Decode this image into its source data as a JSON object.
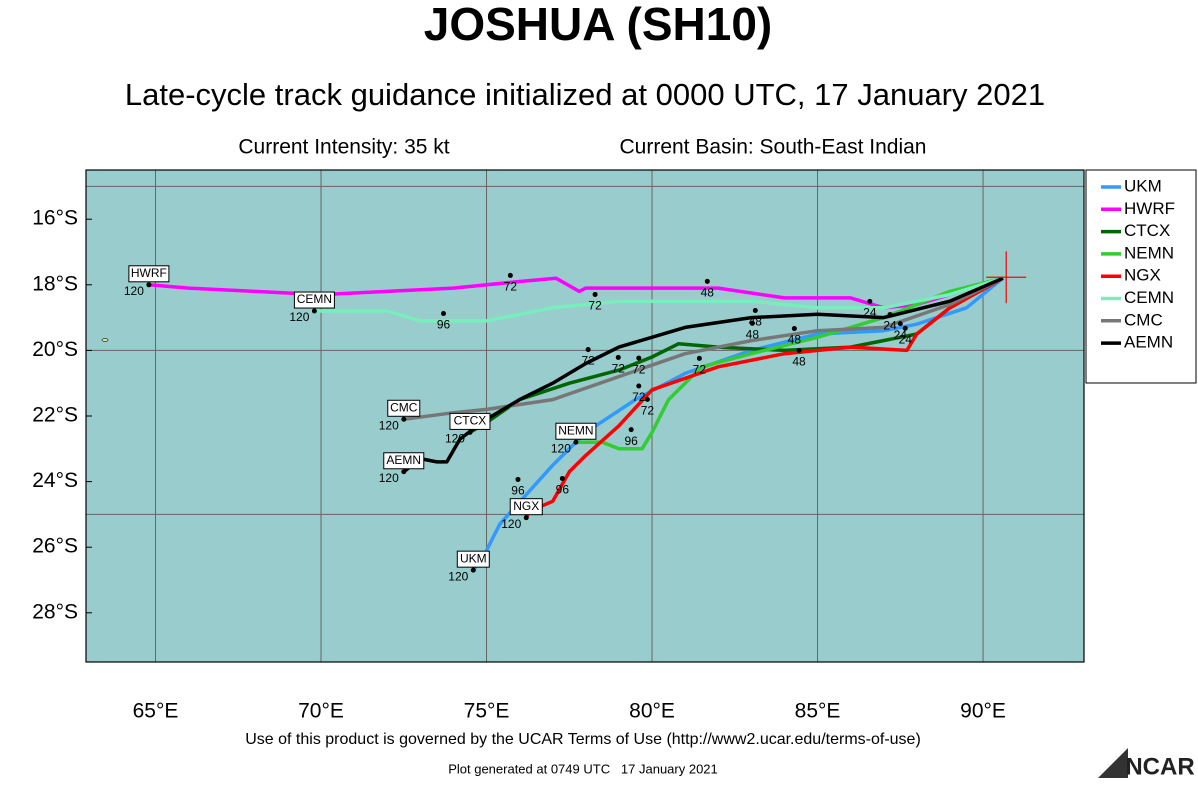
{
  "title": "JOSHUA (SH10)",
  "subtitle": "Late-cycle track guidance initialized at 0000 UTC, 17 January 2021",
  "intensity": "Current Intensity: 35 kt",
  "basin": "Current Basin: South-East Indian",
  "map": {
    "xlim": [
      62.9,
      93.05
    ],
    "ylim": [
      -29.5,
      -14.5
    ],
    "xticks": [
      {
        "value": 65,
        "label": "65°E"
      },
      {
        "value": 70,
        "label": "70°E"
      },
      {
        "value": 75,
        "label": "75°E"
      },
      {
        "value": 80,
        "label": "80°E"
      },
      {
        "value": 85,
        "label": "85°E"
      },
      {
        "value": 90,
        "label": "90°E"
      }
    ],
    "yticks": [
      {
        "value": -16,
        "label": "16°S"
      },
      {
        "value": -18,
        "label": "18°S"
      },
      {
        "value": -20,
        "label": "20°S"
      },
      {
        "value": -22,
        "label": "22°S"
      },
      {
        "value": -24,
        "label": "24°S"
      },
      {
        "value": -26,
        "label": "26°S"
      },
      {
        "value": -28,
        "label": "28°S"
      }
    ],
    "grid_lats": [
      -15,
      -20,
      -25
    ],
    "background": "#99cccc",
    "current_position": {
      "lon": 90.7,
      "lat": -17.77
    },
    "end_hour": "120",
    "tracks": [
      {
        "name": "UKM",
        "color": "#3399ff",
        "lon": [
          90.6,
          89.5,
          88,
          87,
          85,
          83,
          81,
          79.5,
          78,
          77,
          76.2,
          75.4,
          74.9,
          74.6
        ],
        "lat": [
          -17.8,
          -18.7,
          -19.2,
          -19.4,
          -19.5,
          -20,
          -20.7,
          -21.5,
          -22.5,
          -23.5,
          -24.4,
          -25.3,
          -26.3,
          -26.7
        ],
        "hour_labels": [
          {
            "text": "96",
            "lon": 75.95,
            "lat": -24.3
          },
          {
            "text": "72",
            "lon": 79.6,
            "lat": -21.45
          },
          {
            "text": "48",
            "lon": 84.3,
            "lat": -19.7
          }
        ]
      },
      {
        "name": "HWRF",
        "color": "#ff00ff",
        "lon": [
          90.6,
          89,
          88,
          87,
          86,
          84,
          82,
          78,
          77.8,
          77.1,
          76,
          74,
          72,
          70,
          68,
          66,
          64.8
        ],
        "lat": [
          -17.8,
          -18.3,
          -18.6,
          -18.7,
          -18.4,
          -18.4,
          -18.1,
          -18.1,
          -18.2,
          -17.8,
          -17.9,
          -18.1,
          -18.2,
          -18.3,
          -18.2,
          -18.1,
          -18.0
        ],
        "hour_labels": [
          {
            "text": "72",
            "lon": 75.72,
            "lat": -18.08
          },
          {
            "text": "48",
            "lon": 81.67,
            "lat": -18.26
          }
        ]
      },
      {
        "name": "CTCX",
        "color": "#006600",
        "lon": [
          90.6,
          89,
          88,
          86,
          84,
          82,
          80.8,
          80,
          79,
          77.5,
          76,
          75,
          74.5
        ],
        "lat": [
          -17.8,
          -18.7,
          -19.5,
          -19.9,
          -20,
          -19.9,
          -19.8,
          -20.2,
          -20.6,
          -21,
          -21.5,
          -22.2,
          -22.5
        ],
        "hour_labels": [
          {
            "text": "72",
            "lon": 79.6,
            "lat": -20.6
          },
          {
            "text": "24",
            "lon": 87.5,
            "lat": -19.55
          }
        ]
      },
      {
        "name": "NEMN",
        "color": "#33cc33",
        "lon": [
          90.6,
          89,
          87,
          85,
          83,
          81.5,
          80.5,
          80,
          79.7,
          79,
          78.5,
          77.7
        ],
        "lat": [
          -17.8,
          -18.2,
          -19,
          -19.6,
          -20.1,
          -20.5,
          -21.5,
          -22.5,
          -23,
          -23,
          -22.8,
          -22.8
        ],
        "hour_labels": [
          {
            "text": "96",
            "lon": 79.37,
            "lat": -22.78
          },
          {
            "text": "72",
            "lon": 81.43,
            "lat": -20.61
          }
        ]
      },
      {
        "name": "NGX",
        "color": "#ff0000",
        "lon": [
          90.6,
          89,
          88,
          87.7,
          86,
          84,
          82,
          80,
          79,
          78,
          77.5,
          77,
          76.3,
          76.2
        ],
        "lat": [
          -17.8,
          -18.7,
          -19.5,
          -20,
          -19.9,
          -20.1,
          -20.5,
          -21.2,
          -22.3,
          -23.2,
          -23.7,
          -24.6,
          -24.9,
          -25.1
        ],
        "hour_labels": [
          {
            "text": "96",
            "lon": 77.29,
            "lat": -24.27
          },
          {
            "text": "72",
            "lon": 79.86,
            "lat": -21.86
          },
          {
            "text": "48",
            "lon": 84.44,
            "lat": -20.37
          },
          {
            "text": "24",
            "lon": 87.65,
            "lat": -19.69
          }
        ]
      },
      {
        "name": "CEMN",
        "color": "#77eebb",
        "lon": [
          90.6,
          89,
          87,
          85,
          83,
          81,
          79,
          77,
          75,
          73,
          72,
          70,
          69.8
        ],
        "lat": [
          -17.8,
          -18.3,
          -18.7,
          -18.7,
          -18.5,
          -18.5,
          -18.5,
          -18.7,
          -19.1,
          -19.1,
          -18.8,
          -18.8,
          -18.8
        ],
        "hour_labels": [
          {
            "text": "96",
            "lon": 73.7,
            "lat": -19.24
          },
          {
            "text": "72",
            "lon": 78.28,
            "lat": -18.66
          }
        ]
      },
      {
        "name": "CMC",
        "color": "#777777",
        "lon": [
          90.6,
          89,
          87,
          85,
          83,
          81,
          79,
          77,
          75,
          74,
          72.5
        ],
        "lat": [
          -17.8,
          -18.6,
          -19.3,
          -19.4,
          -19.7,
          -20.1,
          -20.8,
          -21.5,
          -21.8,
          -21.9,
          -22.1
        ],
        "hour_labels": [
          {
            "text": "72",
            "lon": 78.98,
            "lat": -20.58
          },
          {
            "text": "48",
            "lon": 83.03,
            "lat": -19.54
          },
          {
            "text": "24",
            "lon": 87.19,
            "lat": -19.27
          }
        ]
      },
      {
        "name": "AEMN",
        "color": "#000000",
        "lon": [
          90.6,
          89,
          87,
          85,
          83,
          81,
          79,
          78,
          77,
          76,
          75,
          74.2,
          73.8,
          73.5,
          73,
          72.5
        ],
        "lat": [
          -17.8,
          -18.5,
          -19,
          -18.9,
          -19,
          -19.3,
          -19.9,
          -20.4,
          -21,
          -21.5,
          -22.1,
          -22.7,
          -23.4,
          -23.4,
          -23.3,
          -23.7
        ],
        "hour_labels": [
          {
            "text": "72",
            "lon": 78.07,
            "lat": -20.34
          },
          {
            "text": "48",
            "lon": 83.12,
            "lat": -19.15
          },
          {
            "text": "24",
            "lon": 86.58,
            "lat": -18.87
          }
        ]
      }
    ]
  },
  "footer": {
    "terms": "Use of this product is governed by the UCAR Terms of Use (http://www2.ucar.edu/terms-of-use)",
    "generated": "Plot generated at 0749 UTC   17 January 2021",
    "logo": "NCAR"
  }
}
